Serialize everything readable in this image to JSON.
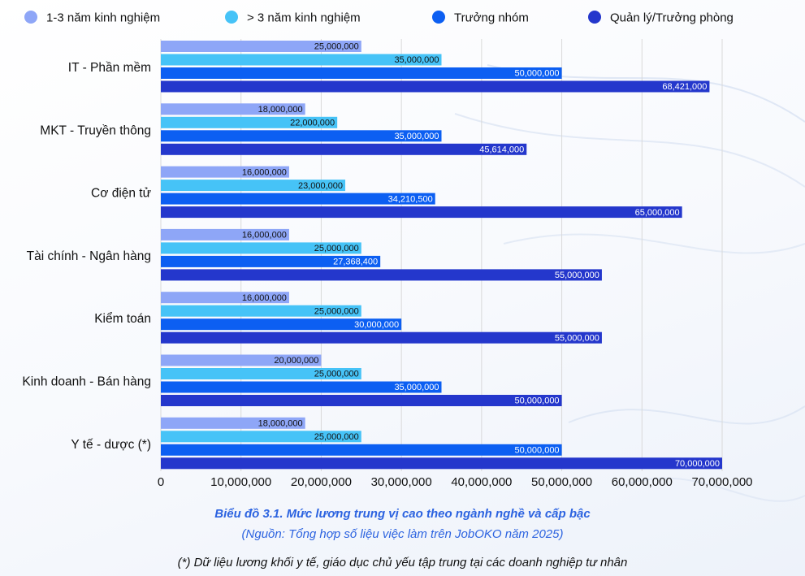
{
  "chart_data": {
    "type": "bar",
    "orientation": "horizontal",
    "categories": [
      "IT - Phần mềm",
      "MKT - Truyền thông",
      "Cơ điện tử",
      "Tài chính - Ngân hàng",
      "Kiểm toán",
      "Kinh doanh - Bán hàng",
      "Y tế - dược (*)"
    ],
    "series": [
      {
        "name": "1-3 năm kinh nghiệm",
        "color": "#8ea6f7",
        "values": [
          25000000,
          18000000,
          16000000,
          16000000,
          16000000,
          20000000,
          18000000
        ],
        "labels": [
          "25,000,000",
          "18,000,000",
          "16,000,000",
          "16,000,000",
          "16,000,000",
          "20,000,000",
          "18,000,000"
        ]
      },
      {
        "name": "> 3 năm kinh nghiệm",
        "color": "#46c3f7",
        "values": [
          35000000,
          22000000,
          23000000,
          25000000,
          25000000,
          25000000,
          25000000
        ],
        "labels": [
          "35,000,000",
          "22,000,000",
          "23,000,000",
          "25,000,000",
          "25,000,000",
          "25,000,000",
          "25,000,000"
        ]
      },
      {
        "name": "Trưởng nhóm",
        "color": "#0c5ff2",
        "values": [
          50000000,
          35000000,
          34210500,
          27368400,
          30000000,
          35000000,
          50000000
        ],
        "labels": [
          "50,000,000",
          "35,000,000",
          "34,210,500",
          "27,368,400",
          "30,000,000",
          "35,000,000",
          "50,000,000"
        ]
      },
      {
        "name": "Quản lý/Trưởng phòng",
        "color": "#2437cc",
        "values": [
          68421000,
          45614000,
          65000000,
          55000000,
          55000000,
          50000000,
          70000000
        ],
        "labels": [
          "68,421,000",
          "45,614,000",
          "65,000,000",
          "55,000,000",
          "55,000,000",
          "50,000,000",
          "70,000,000"
        ]
      }
    ],
    "xlim": [
      0,
      70000000
    ],
    "x_ticks": [
      "0",
      "10,000,000",
      "20,000,000",
      "30,000,000",
      "40,000,000",
      "50,000,000",
      "60,000,000",
      "70,000,000"
    ],
    "grid": "vertical",
    "legend_position": "top"
  },
  "captions": {
    "title": "Biểu đồ 3.1. Mức lương trung vị cao theo ngành nghề và cấp bậc",
    "source": "(Nguồn: Tổng hợp số liệu việc làm trên JobOKO năm 2025)",
    "note": "(*) Dữ liệu lương khối y tế, giáo dục chủ yếu tập trung tại các doanh nghiệp tư nhân"
  }
}
